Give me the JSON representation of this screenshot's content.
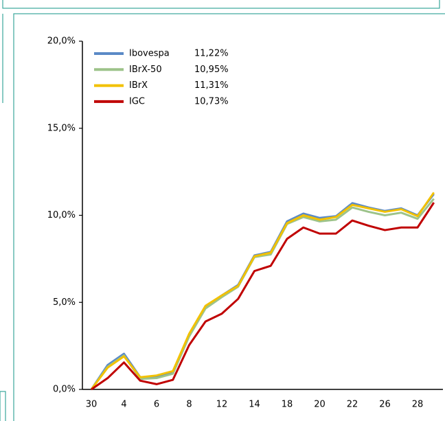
{
  "chart_data": {
    "type": "line",
    "categories": [
      "30",
      null,
      "4",
      null,
      "6",
      null,
      "8",
      null,
      "12",
      null,
      "14",
      null,
      "18",
      null,
      "20",
      null,
      "22",
      null,
      "26",
      null,
      "28",
      null
    ],
    "series": [
      {
        "name": "Ibovespa",
        "legend_value": "11,22%",
        "color": "#5b8ac6",
        "values": [
          0,
          1.4,
          2.05,
          0.7,
          0.75,
          1.0,
          3.15,
          4.75,
          5.4,
          6.0,
          7.7,
          7.9,
          9.65,
          10.1,
          9.85,
          9.95,
          10.7,
          10.45,
          10.25,
          10.4,
          10.0,
          11.22
        ]
      },
      {
        "name": "IBrX-50",
        "legend_value": "10,95%",
        "color": "#9dc38a",
        "values": [
          0,
          1.3,
          1.95,
          0.6,
          0.65,
          0.9,
          3.05,
          4.65,
          5.3,
          5.9,
          7.6,
          7.75,
          9.5,
          9.9,
          9.65,
          9.75,
          10.45,
          10.2,
          10.0,
          10.15,
          9.8,
          10.95
        ]
      },
      {
        "name": "IBrX",
        "legend_value": "11,31%",
        "color": "#f2c100",
        "values": [
          0,
          1.25,
          1.9,
          0.7,
          0.8,
          1.05,
          3.2,
          4.8,
          5.4,
          5.95,
          7.65,
          7.85,
          9.55,
          10.0,
          9.75,
          9.9,
          10.6,
          10.4,
          10.2,
          10.35,
          9.95,
          11.31
        ]
      },
      {
        "name": "IGC",
        "legend_value": "10,73%",
        "color": "#c00000",
        "values": [
          0,
          0.65,
          1.55,
          0.5,
          0.3,
          0.55,
          2.55,
          3.9,
          4.35,
          5.2,
          6.8,
          7.1,
          8.65,
          9.3,
          8.95,
          8.95,
          9.7,
          9.4,
          9.15,
          9.3,
          9.3,
          10.73
        ]
      }
    ],
    "ylim": [
      0,
      20
    ],
    "yticks": [
      {
        "value": 0,
        "label": "0,0%"
      },
      {
        "value": 5,
        "label": "5,0%"
      },
      {
        "value": 10,
        "label": "10,0%"
      },
      {
        "value": 15,
        "label": "15,0%"
      },
      {
        "value": 20,
        "label": "20,0%"
      }
    ],
    "legend": "top-left"
  }
}
